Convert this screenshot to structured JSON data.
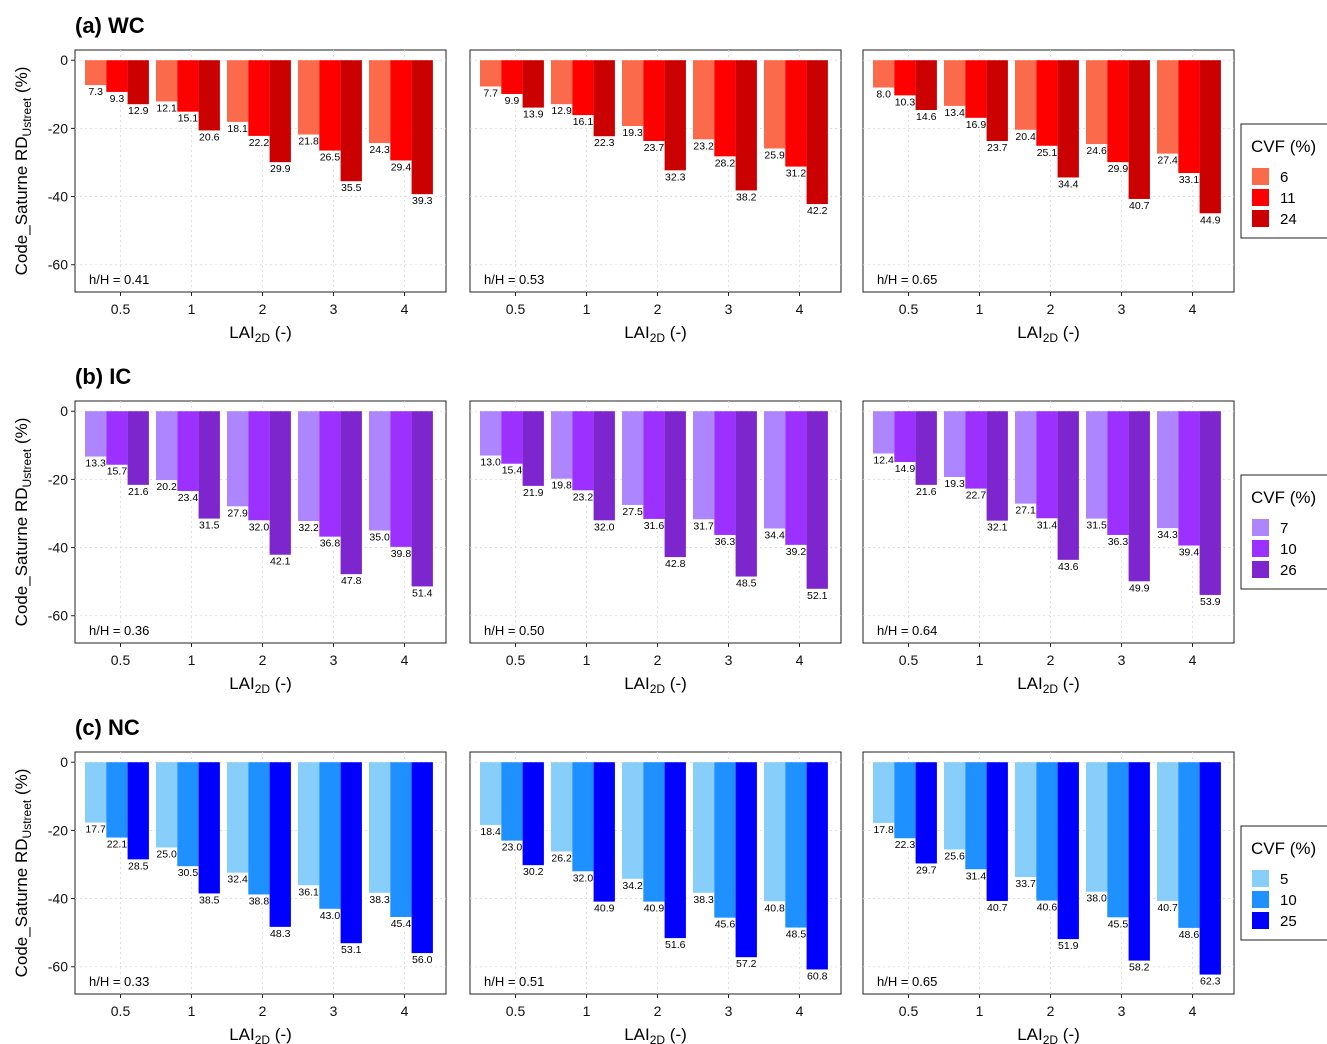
{
  "figure": {
    "categories": [
      "0.5",
      "1",
      "2",
      "3",
      "4"
    ],
    "x_label_main": "LAI",
    "x_label_sub": "2D",
    "x_label_suffix": " (-)",
    "y_label_main": "Code_Saturne RD",
    "y_label_sub": "Ustreet",
    "y_label_suffix": " (%)",
    "y_ticks": [
      "0",
      "-20",
      "-40",
      "-60"
    ],
    "legend_title": "CVF (%)"
  },
  "chart_data": [
    {
      "type": "bar",
      "row_title": "(a) WC",
      "annotation": "h/H = 0.41",
      "categories": [
        "0.5",
        "1",
        "2",
        "3",
        "4"
      ],
      "ylim": [
        -68,
        3
      ],
      "grid": true,
      "series": [
        {
          "name": "6",
          "color": "#fb6a4a",
          "values": [
            -7.3,
            -12.1,
            -18.1,
            -21.8,
            -24.3
          ]
        },
        {
          "name": "11",
          "color": "#ff0000",
          "values": [
            -9.3,
            -15.1,
            -22.2,
            -26.5,
            -29.4
          ]
        },
        {
          "name": "24",
          "color": "#cb0000",
          "values": [
            -12.9,
            -20.6,
            -29.9,
            -35.5,
            -39.3
          ]
        }
      ]
    },
    {
      "type": "bar",
      "row_title": "",
      "annotation": "h/H = 0.53",
      "categories": [
        "0.5",
        "1",
        "2",
        "3",
        "4"
      ],
      "ylim": [
        -68,
        3
      ],
      "grid": true,
      "series": [
        {
          "name": "6",
          "color": "#fb6a4a",
          "values": [
            -7.7,
            -12.9,
            -19.3,
            -23.2,
            -25.9
          ]
        },
        {
          "name": "11",
          "color": "#ff0000",
          "values": [
            -9.9,
            -16.1,
            -23.7,
            -28.2,
            -31.2
          ]
        },
        {
          "name": "24",
          "color": "#cb0000",
          "values": [
            -13.9,
            -22.3,
            -32.3,
            -38.2,
            -42.2
          ]
        }
      ]
    },
    {
      "type": "bar",
      "row_title": "",
      "annotation": "h/H = 0.65",
      "categories": [
        "0.5",
        "1",
        "2",
        "3",
        "4"
      ],
      "ylim": [
        -68,
        3
      ],
      "grid": true,
      "series": [
        {
          "name": "6",
          "color": "#fb6a4a",
          "values": [
            -8.0,
            -13.4,
            -20.4,
            -24.6,
            -27.4
          ]
        },
        {
          "name": "11",
          "color": "#ff0000",
          "values": [
            -10.3,
            -16.9,
            -25.1,
            -29.9,
            -33.1
          ]
        },
        {
          "name": "24",
          "color": "#cb0000",
          "values": [
            -14.6,
            -23.7,
            -34.4,
            -40.7,
            -44.9
          ]
        }
      ]
    },
    {
      "type": "bar",
      "row_title": "(b) IC",
      "annotation": "h/H = 0.36",
      "categories": [
        "0.5",
        "1",
        "2",
        "3",
        "4"
      ],
      "ylim": [
        -68,
        3
      ],
      "grid": true,
      "series": [
        {
          "name": "7",
          "color": "#ad85ff",
          "values": [
            -13.3,
            -20.2,
            -27.9,
            -32.2,
            -35.0
          ]
        },
        {
          "name": "10",
          "color": "#9b30ff",
          "values": [
            -15.7,
            -23.4,
            -32.0,
            -36.8,
            -39.8
          ]
        },
        {
          "name": "26",
          "color": "#7d26cd",
          "values": [
            -21.6,
            -31.5,
            -42.1,
            -47.8,
            -51.4
          ]
        }
      ]
    },
    {
      "type": "bar",
      "row_title": "",
      "annotation": "h/H = 0.50",
      "categories": [
        "0.5",
        "1",
        "2",
        "3",
        "4"
      ],
      "ylim": [
        -68,
        3
      ],
      "grid": true,
      "series": [
        {
          "name": "7",
          "color": "#ad85ff",
          "values": [
            -13.0,
            -19.8,
            -27.5,
            -31.7,
            -34.4
          ]
        },
        {
          "name": "10",
          "color": "#9b30ff",
          "values": [
            -15.4,
            -23.2,
            -31.6,
            -36.3,
            -39.2
          ]
        },
        {
          "name": "26",
          "color": "#7d26cd",
          "values": [
            -21.9,
            -32.0,
            -42.8,
            -48.5,
            -52.1
          ]
        }
      ]
    },
    {
      "type": "bar",
      "row_title": "",
      "annotation": "h/H = 0.64",
      "categories": [
        "0.5",
        "1",
        "2",
        "3",
        "4"
      ],
      "ylim": [
        -68,
        3
      ],
      "grid": true,
      "series": [
        {
          "name": "7",
          "color": "#ad85ff",
          "values": [
            -12.4,
            -19.3,
            -27.1,
            -31.5,
            -34.3
          ]
        },
        {
          "name": "10",
          "color": "#9b30ff",
          "values": [
            -14.9,
            -22.7,
            -31.4,
            -36.3,
            -39.4
          ]
        },
        {
          "name": "26",
          "color": "#7d26cd",
          "values": [
            -21.6,
            -32.1,
            -43.6,
            -49.9,
            -53.9
          ]
        }
      ]
    },
    {
      "type": "bar",
      "row_title": "(c) NC",
      "annotation": "h/H = 0.33",
      "categories": [
        "0.5",
        "1",
        "2",
        "3",
        "4"
      ],
      "ylim": [
        -68,
        3
      ],
      "grid": true,
      "series": [
        {
          "name": "5",
          "color": "#87cefa",
          "values": [
            -17.7,
            -25.0,
            -32.4,
            -36.1,
            -38.3
          ]
        },
        {
          "name": "10",
          "color": "#1e90ff",
          "values": [
            -22.1,
            -30.5,
            -38.8,
            -43.0,
            -45.4
          ]
        },
        {
          "name": "25",
          "color": "#0000ff",
          "values": [
            -28.5,
            -38.5,
            -48.3,
            -53.1,
            -56.0
          ]
        }
      ]
    },
    {
      "type": "bar",
      "row_title": "",
      "annotation": "h/H = 0.51",
      "categories": [
        "0.5",
        "1",
        "2",
        "3",
        "4"
      ],
      "ylim": [
        -68,
        3
      ],
      "grid": true,
      "series": [
        {
          "name": "5",
          "color": "#87cefa",
          "values": [
            -18.4,
            -26.2,
            -34.2,
            -38.3,
            -40.8
          ]
        },
        {
          "name": "10",
          "color": "#1e90ff",
          "values": [
            -23.0,
            -32.0,
            -40.9,
            -45.6,
            -48.5
          ]
        },
        {
          "name": "25",
          "color": "#0000ff",
          "values": [
            -30.2,
            -40.9,
            -51.6,
            -57.2,
            -60.8
          ]
        }
      ]
    },
    {
      "type": "bar",
      "row_title": "",
      "annotation": "h/H = 0.65",
      "categories": [
        "0.5",
        "1",
        "2",
        "3",
        "4"
      ],
      "ylim": [
        -68,
        3
      ],
      "grid": true,
      "series": [
        {
          "name": "5",
          "color": "#87cefa",
          "values": [
            -17.8,
            -25.6,
            -33.7,
            -38.0,
            -40.7
          ]
        },
        {
          "name": "10",
          "color": "#1e90ff",
          "values": [
            -22.3,
            -31.4,
            -40.6,
            -45.5,
            -48.6
          ]
        },
        {
          "name": "25",
          "color": "#0000ff",
          "values": [
            -29.7,
            -40.7,
            -51.9,
            -58.2,
            -62.3
          ]
        }
      ]
    }
  ]
}
